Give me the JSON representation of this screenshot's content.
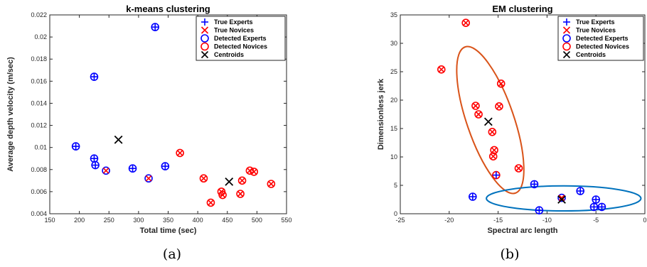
{
  "colors": {
    "expert": "#0000ff",
    "novice": "#ff0000",
    "centroid": "#000000",
    "ellipse_novice": "#d95319",
    "ellipse_expert": "#0072bd"
  },
  "captions": [
    "(a)",
    "(b)"
  ],
  "chart_data": [
    {
      "type": "scatter",
      "title": "k-means clustering",
      "xlabel": "Total time (sec)",
      "ylabel": "Average depth velocity (m/sec)",
      "xlim": [
        150,
        550
      ],
      "ylim": [
        0.004,
        0.022
      ],
      "xticks": [
        150,
        200,
        250,
        300,
        350,
        400,
        450,
        500,
        550
      ],
      "yticks": [
        0.004,
        0.006,
        0.008,
        0.01,
        0.012,
        0.014,
        0.016,
        0.018,
        0.02,
        0.022
      ],
      "ytick_labels": [
        "0.004",
        "0.006",
        "0.008",
        "0.01",
        "0.012",
        "0.014",
        "0.016",
        "0.018",
        "0.02",
        "0.022"
      ],
      "legend": {
        "position": "top-right",
        "entries": [
          {
            "label": "True Experts",
            "marker": "plus",
            "color": "#0000ff"
          },
          {
            "label": "True Novices",
            "marker": "x",
            "color": "#ff0000"
          },
          {
            "label": "Detected Experts",
            "marker": "circle",
            "color": "#0000ff"
          },
          {
            "label": "Detected Novices",
            "marker": "circle",
            "color": "#ff0000"
          },
          {
            "label": "Centroids",
            "marker": "x",
            "color": "#000000"
          }
        ]
      },
      "points": [
        {
          "x": 194,
          "y": 0.0101,
          "true": "expert",
          "detected": "expert"
        },
        {
          "x": 225,
          "y": 0.0164,
          "true": "expert",
          "detected": "expert"
        },
        {
          "x": 225,
          "y": 0.009,
          "true": "expert",
          "detected": "expert"
        },
        {
          "x": 227,
          "y": 0.0084,
          "true": "expert",
          "detected": "expert"
        },
        {
          "x": 245,
          "y": 0.0079,
          "true": "novice",
          "detected": "expert"
        },
        {
          "x": 290,
          "y": 0.0081,
          "true": "expert",
          "detected": "expert"
        },
        {
          "x": 317,
          "y": 0.0072,
          "true": "novice",
          "detected": "expert"
        },
        {
          "x": 328,
          "y": 0.0209,
          "true": "expert",
          "detected": "expert"
        },
        {
          "x": 345,
          "y": 0.0083,
          "true": "expert",
          "detected": "expert"
        },
        {
          "x": 370,
          "y": 0.0095,
          "true": "novice",
          "detected": "novice"
        },
        {
          "x": 410,
          "y": 0.0072,
          "true": "novice",
          "detected": "novice"
        },
        {
          "x": 422,
          "y": 0.005,
          "true": "novice",
          "detected": "novice"
        },
        {
          "x": 440,
          "y": 0.006,
          "true": "novice",
          "detected": "novice"
        },
        {
          "x": 442,
          "y": 0.0057,
          "true": "novice",
          "detected": "novice"
        },
        {
          "x": 472,
          "y": 0.0058,
          "true": "novice",
          "detected": "novice"
        },
        {
          "x": 475,
          "y": 0.007,
          "true": "novice",
          "detected": "novice"
        },
        {
          "x": 488,
          "y": 0.0079,
          "true": "novice",
          "detected": "novice"
        },
        {
          "x": 495,
          "y": 0.0078,
          "true": "novice",
          "detected": "novice"
        },
        {
          "x": 524,
          "y": 0.0067,
          "true": "novice",
          "detected": "novice"
        }
      ],
      "centroids": [
        {
          "x": 266,
          "y": 0.0107
        },
        {
          "x": 453,
          "y": 0.0069
        }
      ]
    },
    {
      "type": "scatter",
      "title": "EM clustering",
      "xlabel": "Spectral arc length",
      "ylabel": "Dimensionless jerk",
      "xlim": [
        -25,
        0
      ],
      "ylim": [
        0,
        35
      ],
      "xticks": [
        -25,
        -20,
        -15,
        -10,
        -5,
        0
      ],
      "yticks": [
        0,
        5,
        10,
        15,
        20,
        25,
        30,
        35
      ],
      "legend": {
        "position": "top-right",
        "entries": [
          {
            "label": "True Experts",
            "marker": "plus",
            "color": "#0000ff"
          },
          {
            "label": "True Novices",
            "marker": "x",
            "color": "#ff0000"
          },
          {
            "label": "Detected Experts",
            "marker": "circle",
            "color": "#0000ff"
          },
          {
            "label": "Detected Novices",
            "marker": "circle",
            "color": "#ff0000"
          },
          {
            "label": "Centroids",
            "marker": "x",
            "color": "#000000"
          }
        ]
      },
      "points": [
        {
          "x": -18.3,
          "y": 33.6,
          "true": "novice",
          "detected": "novice"
        },
        {
          "x": -20.8,
          "y": 25.4,
          "true": "novice",
          "detected": "novice"
        },
        {
          "x": -14.7,
          "y": 22.9,
          "true": "novice",
          "detected": "novice"
        },
        {
          "x": -17.3,
          "y": 19.0,
          "true": "novice",
          "detected": "novice"
        },
        {
          "x": -14.9,
          "y": 18.9,
          "true": "novice",
          "detected": "novice"
        },
        {
          "x": -17.0,
          "y": 17.5,
          "true": "novice",
          "detected": "novice"
        },
        {
          "x": -15.6,
          "y": 14.4,
          "true": "novice",
          "detected": "novice"
        },
        {
          "x": -15.4,
          "y": 11.2,
          "true": "novice",
          "detected": "novice"
        },
        {
          "x": -15.5,
          "y": 10.1,
          "true": "novice",
          "detected": "novice"
        },
        {
          "x": -12.9,
          "y": 8.0,
          "true": "novice",
          "detected": "novice"
        },
        {
          "x": -15.2,
          "y": 6.8,
          "true": "expert",
          "detected": "novice"
        },
        {
          "x": -17.6,
          "y": 3.0,
          "true": "expert",
          "detected": "expert"
        },
        {
          "x": -11.3,
          "y": 5.2,
          "true": "expert",
          "detected": "expert"
        },
        {
          "x": -8.5,
          "y": 2.8,
          "true": "novice",
          "detected": "expert"
        },
        {
          "x": -6.6,
          "y": 4.0,
          "true": "expert",
          "detected": "expert"
        },
        {
          "x": -5.0,
          "y": 2.5,
          "true": "expert",
          "detected": "expert"
        },
        {
          "x": -5.2,
          "y": 1.2,
          "true": "expert",
          "detected": "expert"
        },
        {
          "x": -4.4,
          "y": 1.2,
          "true": "expert",
          "detected": "expert"
        },
        {
          "x": -10.8,
          "y": 0.6,
          "true": "expert",
          "detected": "expert"
        }
      ],
      "centroids": [
        {
          "x": -16.0,
          "y": 16.2
        },
        {
          "x": -8.5,
          "y": 2.5
        }
      ],
      "ellipses": [
        {
          "cx": -15.8,
          "cy": 16.5,
          "rx": 2.4,
          "ry": 13.6,
          "rotate_deg": -19,
          "color": "#d95319"
        },
        {
          "cx": -8.3,
          "cy": 2.7,
          "rx": 7.9,
          "ry": 2.2,
          "rotate_deg": 0,
          "color": "#0072bd"
        }
      ]
    }
  ]
}
